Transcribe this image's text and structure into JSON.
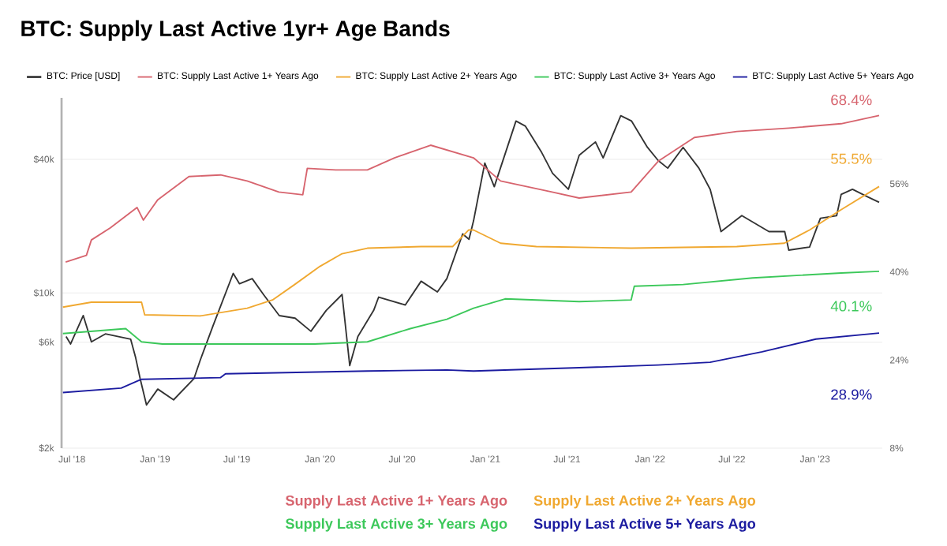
{
  "chart_data": {
    "type": "line",
    "title": "BTC: Supply Last Active 1yr+ Age Bands",
    "xlim": [
      "2018-06-08",
      "2023-05-30"
    ],
    "xticks": [
      {
        "value": "2018-07-01",
        "label": "Jul '18"
      },
      {
        "value": "2019-01-01",
        "label": "Jan '19"
      },
      {
        "value": "2019-07-01",
        "label": "Jul '19"
      },
      {
        "value": "2020-01-01",
        "label": "Jan '20"
      },
      {
        "value": "2020-07-01",
        "label": "Jul '20"
      },
      {
        "value": "2021-01-01",
        "label": "Jan '21"
      },
      {
        "value": "2021-07-01",
        "label": "Jul '21"
      },
      {
        "value": "2022-01-01",
        "label": "Jan '22"
      },
      {
        "value": "2022-07-01",
        "label": "Jul '22"
      },
      {
        "value": "2023-01-01",
        "label": "Jan '23"
      }
    ],
    "ylim": [
      2000,
      75700
    ],
    "log": "y",
    "yticks": [
      {
        "value": 2000,
        "label": "$2k"
      },
      {
        "value": 6000,
        "label": "$6k"
      },
      {
        "value": 10000,
        "label": "$10k"
      },
      {
        "value": 40000,
        "label": "$40k"
      }
    ],
    "y2lim": [
      8,
      71.6
    ],
    "y2ticks": [
      {
        "value": 8,
        "label": "8%"
      },
      {
        "value": 24,
        "label": "24%"
      },
      {
        "value": 40,
        "label": "40%"
      },
      {
        "value": 56,
        "label": "56%"
      }
    ],
    "grid": "y",
    "legend": "top",
    "series": [
      {
        "name": "BTC: Price [USD]",
        "color": "#333333",
        "x": [
          "2018-06-18",
          "2018-06-28",
          "2018-07-26",
          "2018-08-13",
          "2018-09-13",
          "2018-11-08",
          "2018-11-19",
          "2018-11-29",
          "2018-12-13",
          "2019-01-07",
          "2019-02-11",
          "2019-03-28",
          "2019-04-11",
          "2019-05-09",
          "2019-06-23",
          "2019-07-07",
          "2019-08-04",
          "2019-08-29",
          "2019-10-03",
          "2019-11-07",
          "2019-12-12",
          "2020-01-15",
          "2020-02-19",
          "2020-03-07",
          "2020-03-25",
          "2020-04-29",
          "2020-05-10",
          "2020-07-08",
          "2020-08-12",
          "2020-09-17",
          "2020-10-08",
          "2020-11-12",
          "2020-11-26",
          "2020-12-06",
          "2020-12-31",
          "2021-01-21",
          "2021-03-10",
          "2021-03-31",
          "2021-05-06",
          "2021-05-30",
          "2021-07-04",
          "2021-07-28",
          "2021-09-02",
          "2021-09-19",
          "2021-10-28",
          "2021-11-21",
          "2021-12-26",
          "2022-01-19",
          "2022-02-09",
          "2022-03-15",
          "2022-04-19",
          "2022-05-14",
          "2022-06-07",
          "2022-07-23",
          "2022-09-21",
          "2022-10-26",
          "2022-11-04",
          "2022-12-20",
          "2023-01-13",
          "2023-02-18",
          "2023-02-28",
          "2023-03-25",
          "2023-04-29",
          "2023-05-23"
        ],
        "values": [
          6370,
          5890,
          7910,
          6020,
          6540,
          6190,
          5110,
          4110,
          3130,
          3690,
          3300,
          4110,
          4980,
          7090,
          12250,
          11000,
          11600,
          9840,
          7910,
          7700,
          6720,
          8350,
          9840,
          4710,
          6370,
          8350,
          9580,
          8830,
          11300,
          10100,
          11600,
          18450,
          17450,
          21100,
          38500,
          30100,
          59500,
          56400,
          42900,
          34600,
          29300,
          41700,
          47900,
          40600,
          62900,
          59500,
          45300,
          39500,
          36500,
          45300,
          36500,
          29300,
          18900,
          22300,
          18900,
          18900,
          15600,
          16100,
          21700,
          22300,
          27800,
          29300,
          27000,
          25600
        ]
      },
      {
        "name": "BTC: Supply Last Active 1+ Years Ago",
        "color": "#d7646e",
        "axis": "y2",
        "x": [
          "2018-06-17",
          "2018-08-02",
          "2018-08-13",
          "2018-09-24",
          "2018-11-22",
          "2018-12-06",
          "2019-01-07",
          "2019-03-17",
          "2019-05-26",
          "2019-07-24",
          "2019-10-02",
          "2019-11-24",
          "2019-12-04",
          "2020-02-05",
          "2020-04-15",
          "2020-06-14",
          "2020-09-02",
          "2020-12-06",
          "2021-02-04",
          "2021-05-29",
          "2021-07-28",
          "2021-11-20",
          "2022-01-19",
          "2022-04-09",
          "2022-07-12",
          "2022-11-04",
          "2023-02-28",
          "2023-05-23"
        ],
        "values": [
          41.8,
          43,
          45.8,
          48,
          51.7,
          49.4,
          53.1,
          57.3,
          57.6,
          56.5,
          54.5,
          54,
          58.8,
          58.5,
          58.5,
          60.7,
          63,
          60.7,
          56.5,
          54.5,
          53.4,
          54.5,
          60.1,
          64.4,
          65.5,
          66.1,
          66.9,
          68.4
        ]
      },
      {
        "name": "BTC: Supply Last Active 2+ Years Ago",
        "color": "#f0a830",
        "axis": "y2",
        "x": [
          "2018-06-11",
          "2018-08-13",
          "2018-12-02",
          "2018-12-09",
          "2019-04-11",
          "2019-07-24",
          "2019-09-18",
          "2019-11-06",
          "2020-01-01",
          "2020-02-19",
          "2020-04-15",
          "2020-08-12",
          "2020-10-21",
          "2020-11-25",
          "2020-12-06",
          "2021-02-04",
          "2021-04-24",
          "2021-11-20",
          "2022-07-12",
          "2022-10-25",
          "2022-12-20",
          "2023-02-28",
          "2023-05-23"
        ],
        "values": [
          33.6,
          34.5,
          34.5,
          32.2,
          32.0,
          33.4,
          34.9,
          37.7,
          41,
          43.3,
          44.3,
          44.6,
          44.6,
          47.6,
          47.6,
          45.2,
          44.6,
          44.3,
          44.6,
          45.2,
          47.6,
          51.3,
          55.5
        ]
      },
      {
        "name": "BTC: Supply Last Active 3+ Years Ago",
        "color": "#3cc85a",
        "axis": "y2",
        "x": [
          "2018-06-11",
          "2018-10-28",
          "2018-12-02",
          "2019-01-17",
          "2019-07-24",
          "2019-12-21",
          "2020-04-15",
          "2020-07-19",
          "2020-10-08",
          "2020-12-06",
          "2021-02-14",
          "2021-07-28",
          "2021-11-20",
          "2021-11-27",
          "2022-03-15",
          "2022-08-16",
          "2023-02-28",
          "2023-05-23"
        ],
        "values": [
          28.8,
          29.7,
          27.3,
          26.9,
          26.9,
          26.9,
          27.3,
          29.7,
          31.4,
          33.4,
          35.1,
          34.6,
          34.9,
          37.4,
          37.7,
          38.9,
          39.8,
          40.1
        ]
      },
      {
        "name": "BTC: Supply Last Active 5+ Years Ago",
        "color": "#1c1ca0",
        "axis": "y2",
        "x": [
          "2018-06-11",
          "2018-10-18",
          "2018-12-02",
          "2019-05-26",
          "2019-06-06",
          "2020-04-15",
          "2020-10-08",
          "2020-12-06",
          "2021-07-28",
          "2022-01-19",
          "2022-05-14",
          "2022-09-06",
          "2023-01-03",
          "2023-05-23"
        ],
        "values": [
          18.1,
          18.9,
          20.5,
          20.8,
          21.5,
          22.0,
          22.2,
          22.0,
          22.6,
          23.1,
          23.6,
          25.5,
          27.8,
          28.9
        ]
      }
    ],
    "annotations": [
      "68.4%",
      "55.5%",
      "40.1%",
      "28.9%",
      "Supply Last Active 1+ Years Ago",
      "Supply Last Active 2+ Years Ago",
      "Supply Last Active 3+ Years Ago",
      "Supply Last Active 5+ Years Ago"
    ]
  }
}
